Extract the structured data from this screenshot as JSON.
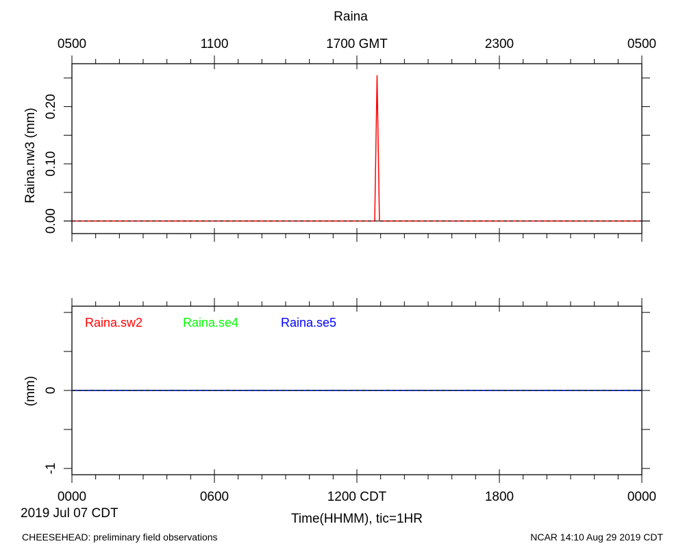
{
  "chart_data": [
    {
      "type": "line",
      "title": "Raina",
      "ylabel": "Raina.nw3 (mm)",
      "ylim": [
        -0.022,
        0.275
      ],
      "yticks": [
        "0.00",
        "0.10",
        "0.20"
      ],
      "x_top_ticks": [
        "0500",
        "1100",
        "1700 GMT",
        "2300",
        "0500"
      ],
      "x": [
        0,
        12.75,
        12.85,
        12.95,
        24
      ],
      "series": [
        {
          "name": "",
          "color": "#ff0000",
          "values": [
            0,
            0,
            0.255,
            0,
            0
          ]
        }
      ]
    },
    {
      "type": "line",
      "ylabel": "(mm)",
      "ylim": [
        -1.08,
        1.08
      ],
      "yticks": [
        "-1",
        "0"
      ],
      "x_bottom_ticks": [
        "0000",
        "0600",
        "1200 CDT",
        "1800",
        "0000"
      ],
      "xlabel": "Time(HHMM), tic=1HR",
      "date_label": "2019 Jul 07 CDT",
      "x": [
        0,
        24
      ],
      "series": [
        {
          "name": "Raina.sw2",
          "color": "#ff0000",
          "values": [
            0,
            0
          ]
        },
        {
          "name": "Raina.se4",
          "color": "#00ff00",
          "values": [
            0,
            0
          ]
        },
        {
          "name": "Raina.se5",
          "color": "#0000ff",
          "values": [
            0,
            0
          ]
        }
      ]
    }
  ],
  "footer": {
    "left": "CHEESEHEAD: preliminary field observations",
    "right": "NCAR 14:10 Aug 29 2019 CDT"
  }
}
